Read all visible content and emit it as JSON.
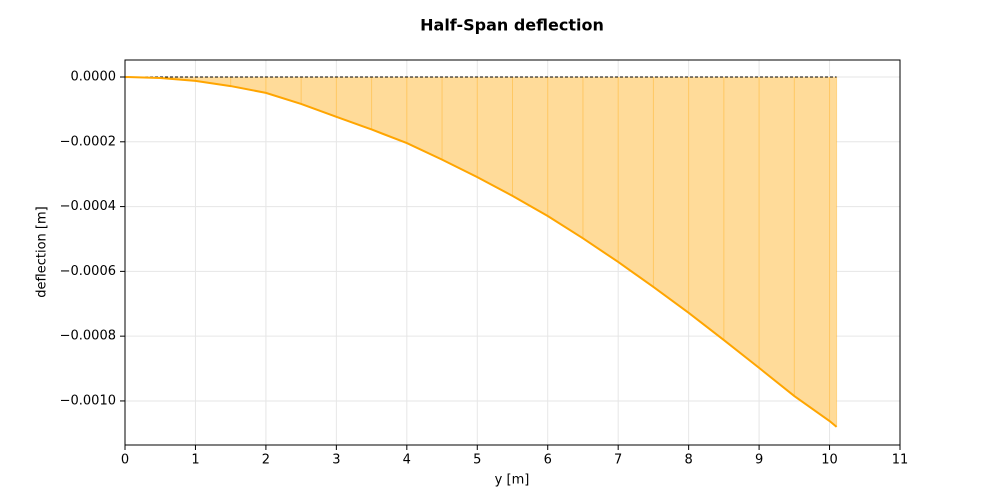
{
  "chart_data": {
    "type": "area",
    "title": "Half-Span deflection",
    "xlabel": "y [m]",
    "ylabel": "deflection [m]",
    "x": [
      0,
      0.5,
      1,
      1.5,
      2,
      2.5,
      3,
      3.5,
      4,
      4.5,
      5,
      5.5,
      6,
      6.5,
      7,
      7.5,
      8,
      8.5,
      9,
      9.5,
      10,
      10.1
    ],
    "values": [
      0,
      -3e-06,
      -1.2e-05,
      -2.8e-05,
      -4.9e-05,
      -8.3e-05,
      -0.000123,
      -0.000162,
      -0.000204,
      -0.000255,
      -0.000309,
      -0.000367,
      -0.000429,
      -0.000498,
      -0.000571,
      -0.000648,
      -0.000728,
      -0.000812,
      -0.000898,
      -0.000985,
      -0.001062,
      -0.00108
    ],
    "color": "#ffa500",
    "fill_color": "#ffdb99",
    "xlim": [
      0,
      11
    ],
    "xticks": [
      0,
      1,
      2,
      3,
      4,
      5,
      6,
      7,
      8,
      9,
      10,
      11
    ],
    "ylim": [
      -0.001136,
      5.25e-05
    ],
    "yticks": [
      {
        "value": 0,
        "label": "0.0000"
      },
      {
        "value": -0.0002,
        "label": "−0.0002"
      },
      {
        "value": -0.0004,
        "label": "−0.0004"
      },
      {
        "value": -0.0006,
        "label": "−0.0006"
      },
      {
        "value": -0.0008,
        "label": "−0.0008"
      },
      {
        "value": -0.001,
        "label": "−0.0010"
      }
    ],
    "grid": true
  }
}
